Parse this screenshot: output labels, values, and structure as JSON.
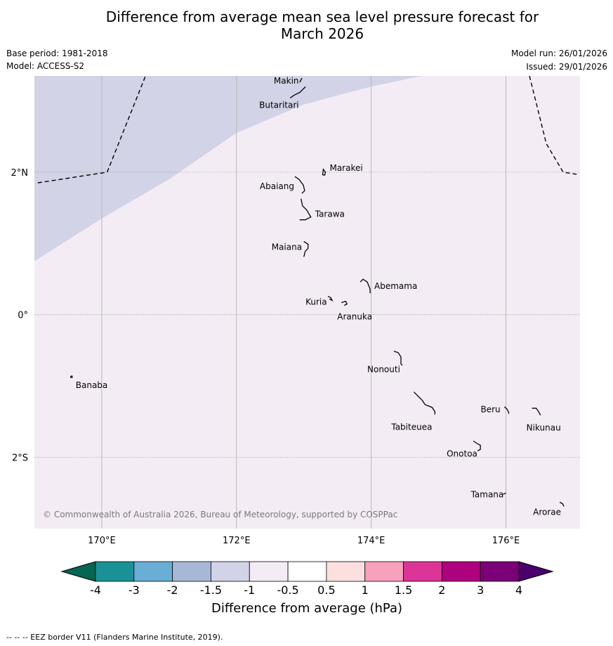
{
  "title_line1": "Difference from average mean sea level pressure forecast for",
  "title_line2": "March 2026",
  "base_period": "Base period: 1981-2018",
  "model": "Model: ACCESS-S2",
  "model_run": "Model run: 26/01/2026",
  "issued": "Issued: 29/01/2026",
  "copyright": "© Commonwealth of Australia 2026, Bureau of Meteorology, supported by COSPPac",
  "footer": "--  --  -- EEZ border V11 (Flanders Marine Institute, 2019).",
  "map": {
    "lon_range": [
      169.0,
      177.1
    ],
    "lat_range": [
      -3.0,
      3.35
    ],
    "lon_ticks": [
      {
        "value": 170,
        "label": "170°E"
      },
      {
        "value": 172,
        "label": "172°E"
      },
      {
        "value": 174,
        "label": "174°E"
      },
      {
        "value": 176,
        "label": "176°E"
      }
    ],
    "lat_ticks": [
      {
        "value": 2,
        "label": "2°N"
      },
      {
        "value": 0,
        "label": "0°"
      },
      {
        "value": -2,
        "label": "2°S"
      }
    ],
    "regions": [
      {
        "category": "-1.5 to -1",
        "color": "#d2d3e6",
        "boundary": [
          [
            169.0,
            0.75
          ],
          [
            170.0,
            1.35
          ],
          [
            171.0,
            1.9
          ],
          [
            172.0,
            2.55
          ],
          [
            173.0,
            2.95
          ],
          [
            174.0,
            3.2
          ],
          [
            174.75,
            3.35
          ]
        ]
      },
      {
        "category": "-1 to -0.5",
        "color": "#f4ecf5"
      }
    ],
    "islands": [
      {
        "name": "Makin",
        "lon": 172.95,
        "lat": 3.28
      },
      {
        "name": "Butaritari",
        "lon": 172.9,
        "lat": 3.1
      },
      {
        "name": "Marakei",
        "lon": 173.3,
        "lat": 2.0
      },
      {
        "name": "Abaiang",
        "lon": 172.95,
        "lat": 1.8
      },
      {
        "name": "Tarawa",
        "lon": 173.0,
        "lat": 1.45
      },
      {
        "name": "Maiana",
        "lon": 173.0,
        "lat": 0.95
      },
      {
        "name": "Abemama",
        "lon": 173.9,
        "lat": 0.4
      },
      {
        "name": "Kuria",
        "lon": 173.4,
        "lat": 0.22
      },
      {
        "name": "Aranuka",
        "lon": 173.6,
        "lat": 0.17
      },
      {
        "name": "Nonouti",
        "lon": 174.4,
        "lat": -0.65
      },
      {
        "name": "Banaba",
        "lon": 169.55,
        "lat": -0.87
      },
      {
        "name": "Tabiteuea",
        "lon": 174.8,
        "lat": -1.3
      },
      {
        "name": "Beru",
        "lon": 176.0,
        "lat": -1.33
      },
      {
        "name": "Nikunau",
        "lon": 176.45,
        "lat": -1.37
      },
      {
        "name": "Onotoa",
        "lon": 175.6,
        "lat": -1.85
      },
      {
        "name": "Tamana",
        "lon": 175.98,
        "lat": -2.5
      },
      {
        "name": "Arorae",
        "lon": 176.82,
        "lat": -2.65
      }
    ],
    "eez_borders": [
      [
        [
          169.05,
          1.85
        ],
        [
          170.08,
          2.0
        ],
        [
          170.65,
          3.35
        ]
      ],
      [
        [
          176.35,
          3.35
        ],
        [
          176.6,
          2.4
        ],
        [
          176.85,
          2.0
        ],
        [
          177.05,
          1.97
        ]
      ]
    ]
  },
  "legend": {
    "label": "Difference from average (hPa)",
    "tick_labels": [
      "-4",
      "-3",
      "-2",
      "-1.5",
      "-1",
      "-0.5",
      "0.5",
      "1",
      "1.5",
      "2",
      "3",
      "4"
    ],
    "colors": [
      "#1a9196",
      "#6aadd5",
      "#a9b7d7",
      "#d2d3e6",
      "#f4ecf5",
      "#ffffff",
      "#fce0e0",
      "#f7a1bc",
      "#dd3497",
      "#ae017e",
      "#7a0177"
    ],
    "under_color": "#056652",
    "over_color": "#49006a"
  }
}
